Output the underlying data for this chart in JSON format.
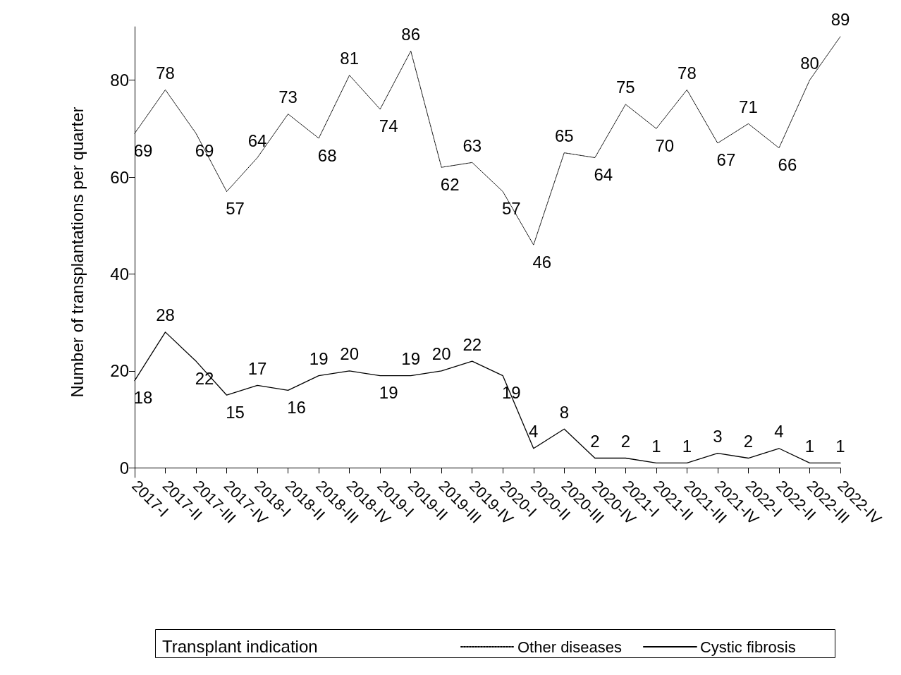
{
  "chart_data": {
    "type": "line",
    "ylabel": "Number of transplantations per quarter",
    "legend_title": "Transplant indication",
    "legend": "bottom",
    "data_labels": true,
    "grid": false,
    "marker": "none",
    "categories": [
      "2017-I",
      "2017-II",
      "2017-III",
      "2017-IV",
      "2018-I",
      "2018-II",
      "2018-III",
      "2018-IV",
      "2019-I",
      "2019-II",
      "2019-III",
      "2019-IV",
      "2020-I",
      "2020-II",
      "2020-III",
      "2020-IV",
      "2021-I",
      "2021-II",
      "2021-III",
      "2021-IV",
      "2022-I",
      "2022-II",
      "2022-III",
      "2022-IV"
    ],
    "ylim": [
      -2,
      91
    ],
    "yticks": [
      0,
      20,
      40,
      60,
      80
    ],
    "series": [
      {
        "name": "Other diseases",
        "color": "#000000",
        "line_style": "dotted",
        "values": [
          69,
          78,
          69,
          57,
          64,
          73,
          68,
          81,
          74,
          86,
          62,
          63,
          57,
          46,
          65,
          64,
          75,
          70,
          78,
          67,
          71,
          66,
          80,
          89
        ]
      },
      {
        "name": "Cystic fibrosis",
        "color": "#000000",
        "line_style": "solid",
        "values": [
          18,
          28,
          22,
          15,
          17,
          16,
          19,
          20,
          19,
          19,
          20,
          22,
          19,
          4,
          8,
          2,
          2,
          1,
          1,
          3,
          2,
          4,
          1,
          1
        ]
      }
    ]
  }
}
